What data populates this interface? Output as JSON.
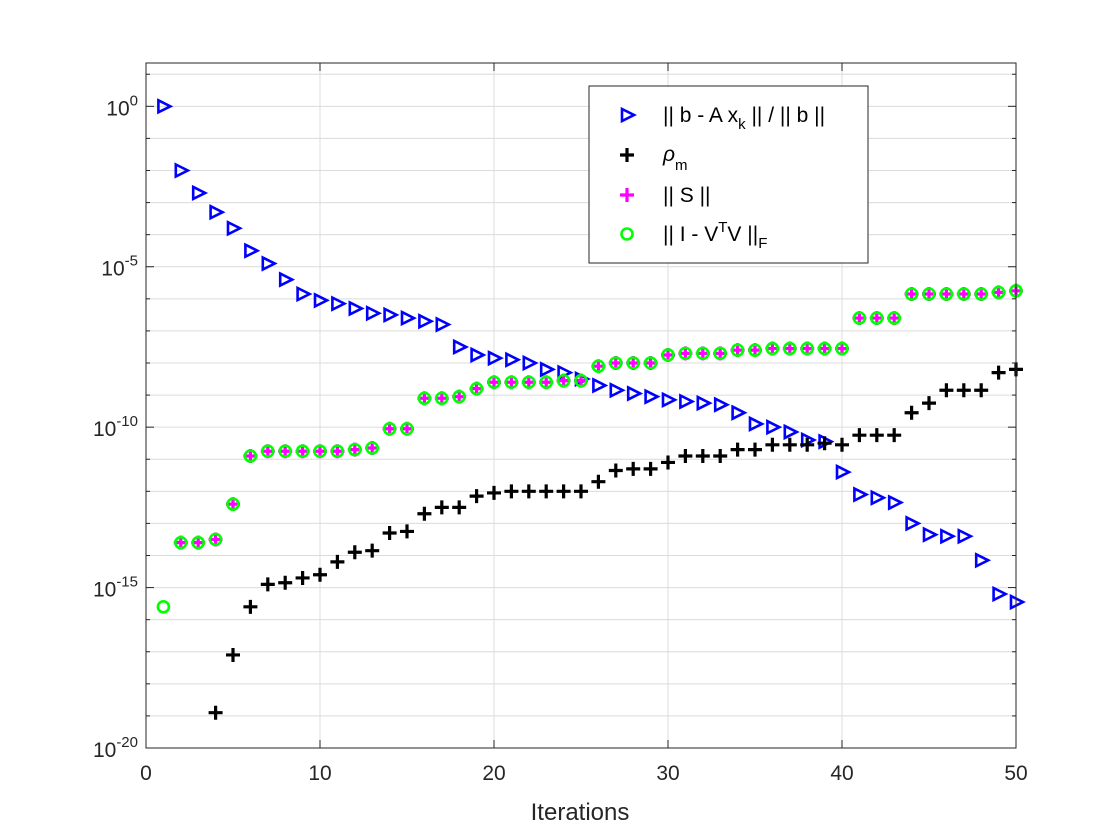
{
  "chart_data": {
    "type": "scatter",
    "title": "",
    "xlabel": "Iterations",
    "ylabel": "",
    "xlim": [
      0,
      50
    ],
    "ylim_log10": [
      -20,
      2
    ],
    "yscale": "log",
    "grid": true,
    "x_ticks": [
      "0",
      "10",
      "20",
      "30",
      "40",
      "50"
    ],
    "y_ticks": [
      {
        "base": "10",
        "exp": "0"
      },
      {
        "base": "10",
        "exp": "-5"
      },
      {
        "base": "10",
        "exp": "-10"
      },
      {
        "base": "10",
        "exp": "-15"
      },
      {
        "base": "10",
        "exp": "-20"
      }
    ],
    "legend_position": "top-right",
    "legend": [
      {
        "parts": [
          "|| b - A x",
          "k",
          " || / || b ||"
        ],
        "subscript_index": 1,
        "marker": "triangle",
        "color": "#0000ff"
      },
      {
        "parts": [
          "ρ",
          "m",
          ""
        ],
        "subscript_index": 1,
        "marker": "plus",
        "color": "#000000"
      },
      {
        "parts": [
          "|| S ||",
          "",
          ""
        ],
        "subscript_index": -1,
        "marker": "plus",
        "color": "#ff00ff"
      },
      {
        "parts": [
          "|| I - V",
          "T",
          "V ||",
          "F"
        ],
        "superscript_index": 1,
        "subscript_index": 3,
        "marker": "circle",
        "color": "#00ff00"
      }
    ],
    "series": [
      {
        "name": "residual",
        "marker": "triangle",
        "color": "#0000ff",
        "x": [
          1,
          2,
          3,
          4,
          5,
          6,
          7,
          8,
          9,
          10,
          11,
          12,
          13,
          14,
          15,
          16,
          17,
          18,
          19,
          20,
          21,
          22,
          23,
          24,
          25,
          26,
          27,
          28,
          29,
          30,
          31,
          32,
          33,
          34,
          35,
          36,
          37,
          38,
          39,
          40,
          41,
          42,
          43,
          44,
          45,
          46,
          47,
          48,
          49,
          50
        ],
        "log10_values": [
          0,
          -2,
          -2.7,
          -3.3,
          -3.8,
          -4.5,
          -4.9,
          -5.4,
          -5.85,
          -6.05,
          -6.15,
          -6.3,
          -6.45,
          -6.5,
          -6.6,
          -6.7,
          -6.8,
          -7.5,
          -7.75,
          -7.85,
          -7.9,
          -8,
          -8.2,
          -8.3,
          -8.5,
          -8.7,
          -8.85,
          -8.95,
          -9.05,
          -9.15,
          -9.2,
          -9.25,
          -9.3,
          -9.55,
          -9.9,
          -10,
          -10.15,
          -10.4,
          -10.45,
          -11.4,
          -12.1,
          -12.2,
          -12.35,
          -13,
          -13.35,
          -13.4,
          -13.4,
          -14.15,
          -15.2,
          -15.45
        ]
      },
      {
        "name": "rho_m",
        "marker": "plus",
        "color": "#000000",
        "x": [
          4,
          5,
          6,
          7,
          8,
          9,
          10,
          11,
          12,
          13,
          14,
          15,
          16,
          17,
          18,
          19,
          20,
          21,
          22,
          23,
          24,
          25,
          26,
          27,
          28,
          29,
          30,
          31,
          32,
          33,
          34,
          35,
          36,
          37,
          38,
          39,
          40,
          41,
          42,
          43,
          44,
          45,
          46,
          47,
          48,
          49,
          50
        ],
        "log10_values": [
          -18.9,
          -17.1,
          -15.6,
          -14.9,
          -14.85,
          -14.7,
          -14.6,
          -14.2,
          -13.9,
          -13.85,
          -13.3,
          -13.25,
          -12.7,
          -12.5,
          -12.5,
          -12.15,
          -12.05,
          -12,
          -12,
          -12,
          -12,
          -12,
          -11.7,
          -11.35,
          -11.3,
          -11.3,
          -11.1,
          -10.9,
          -10.9,
          -10.9,
          -10.7,
          -10.7,
          -10.55,
          -10.55,
          -10.55,
          -10.5,
          -10.55,
          -10.25,
          -10.25,
          -10.25,
          -9.55,
          -9.25,
          -8.85,
          -8.85,
          -8.85,
          -8.3,
          -8.2
        ]
      },
      {
        "name": "S_norm",
        "marker": "plus",
        "color": "#ff00ff",
        "x": [
          2,
          3,
          4,
          5,
          6,
          7,
          8,
          9,
          10,
          11,
          12,
          13,
          14,
          15,
          16,
          17,
          18,
          19,
          20,
          21,
          22,
          23,
          24,
          25,
          26,
          27,
          28,
          29,
          30,
          31,
          32,
          33,
          34,
          35,
          36,
          37,
          38,
          39,
          40,
          41,
          42,
          43,
          44,
          45,
          46,
          47,
          48,
          49,
          50
        ],
        "log10_values": [
          -13.6,
          -13.6,
          -13.5,
          -12.4,
          -10.9,
          -10.75,
          -10.75,
          -10.75,
          -10.75,
          -10.75,
          -10.7,
          -10.65,
          -10.05,
          -10.05,
          -9.1,
          -9.1,
          -9.05,
          -8.8,
          -8.6,
          -8.6,
          -8.6,
          -8.6,
          -8.55,
          -8.55,
          -8.1,
          -8.0,
          -8.0,
          -8.0,
          -7.75,
          -7.7,
          -7.7,
          -7.7,
          -7.6,
          -7.6,
          -7.55,
          -7.55,
          -7.55,
          -7.55,
          -7.55,
          -6.6,
          -6.6,
          -6.6,
          -5.85,
          -5.85,
          -5.85,
          -5.85,
          -5.85,
          -5.8,
          -5.75
        ]
      },
      {
        "name": "orthogonality",
        "marker": "circle",
        "color": "#00ff00",
        "x": [
          1,
          2,
          3,
          4,
          5,
          6,
          7,
          8,
          9,
          10,
          11,
          12,
          13,
          14,
          15,
          16,
          17,
          18,
          19,
          20,
          21,
          22,
          23,
          24,
          25,
          26,
          27,
          28,
          29,
          30,
          31,
          32,
          33,
          34,
          35,
          36,
          37,
          38,
          39,
          40,
          41,
          42,
          43,
          44,
          45,
          46,
          47,
          48,
          49,
          50
        ],
        "log10_values": [
          -15.6,
          -13.6,
          -13.6,
          -13.5,
          -12.4,
          -10.9,
          -10.75,
          -10.75,
          -10.75,
          -10.75,
          -10.75,
          -10.7,
          -10.65,
          -10.05,
          -10.05,
          -9.1,
          -9.1,
          -9.05,
          -8.8,
          -8.6,
          -8.6,
          -8.6,
          -8.6,
          -8.55,
          -8.55,
          -8.1,
          -8.0,
          -8.0,
          -8.0,
          -7.75,
          -7.7,
          -7.7,
          -7.7,
          -7.6,
          -7.6,
          -7.55,
          -7.55,
          -7.55,
          -7.55,
          -7.55,
          -6.6,
          -6.6,
          -6.6,
          -5.85,
          -5.85,
          -5.85,
          -5.85,
          -5.85,
          -5.8,
          -5.75
        ]
      }
    ]
  }
}
